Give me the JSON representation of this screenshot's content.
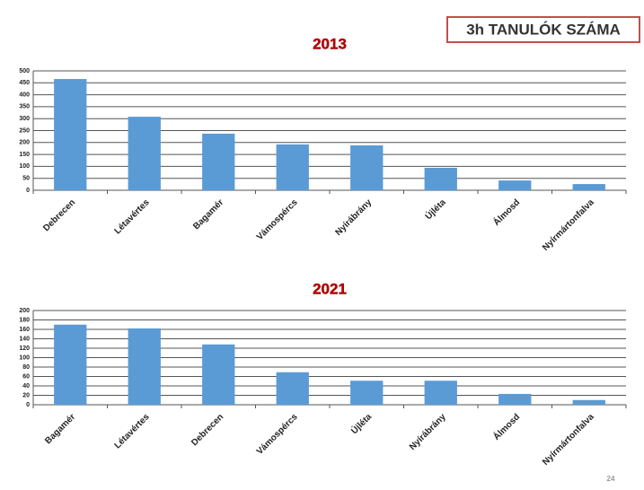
{
  "header": {
    "title": "3h TANULÓK SZÁMA"
  },
  "page_number": "24",
  "chart_data": [
    {
      "type": "bar",
      "title": "2013",
      "categories": [
        "Debrecen",
        "Létavértes",
        "Bagamér",
        "Vámospércs",
        "Nyírábrány",
        "Újléta",
        "Álmosd",
        "Nyírmártonfalva"
      ],
      "values": [
        466,
        308,
        237,
        192,
        188,
        94,
        41,
        26
      ],
      "color": "#5b9bd5",
      "ylim": [
        0,
        500
      ],
      "yticks": [
        0,
        50,
        100,
        150,
        200,
        250,
        300,
        350,
        400,
        450,
        500
      ],
      "grid": true
    },
    {
      "type": "bar",
      "title": "2021",
      "categories": [
        "Bagamér",
        "Létavértes",
        "Debrecen",
        "Vámospércs",
        "Újléta",
        "Nyírábrány",
        "Álmosd",
        "Nyírmártonfalva"
      ],
      "values": [
        170,
        162,
        128,
        69,
        51,
        51,
        23,
        10
      ],
      "color": "#5b9bd5",
      "ylim": [
        0,
        200
      ],
      "yticks": [
        0,
        20,
        40,
        60,
        80,
        100,
        120,
        140,
        160,
        180,
        200
      ],
      "grid": true
    }
  ]
}
